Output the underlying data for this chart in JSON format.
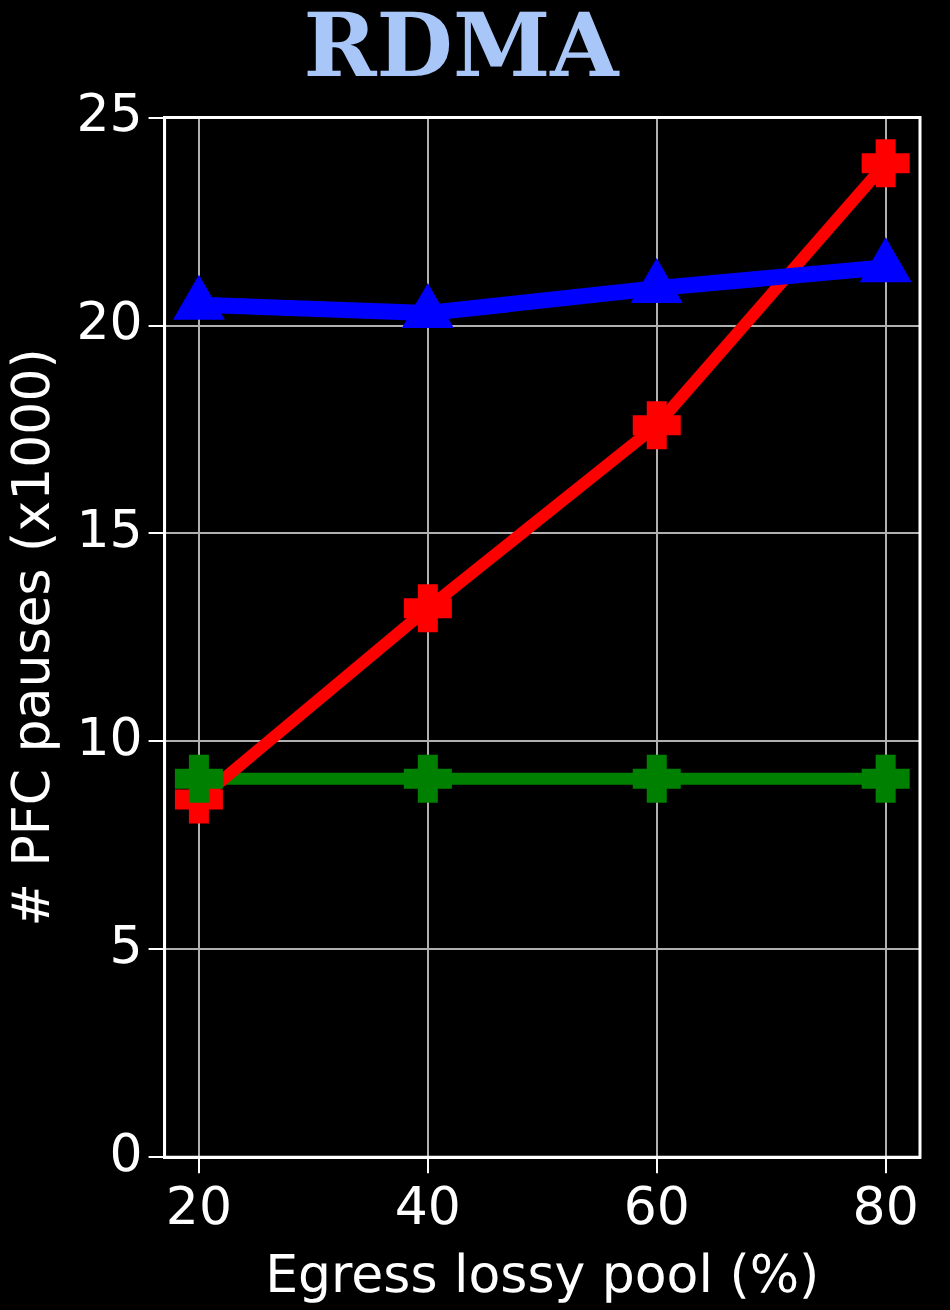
{
  "chart_data": {
    "type": "line",
    "title": "RDMA",
    "xlabel": "Egress lossy pool (%)",
    "ylabel": "# PFC pauses (x1000)",
    "x": [
      20,
      40,
      60,
      80
    ],
    "series": [
      {
        "color": "#0000ff",
        "values": [
          20.5,
          20.3,
          20.9,
          21.4
        ],
        "marker": "triangle"
      },
      {
        "color": "#ff0000",
        "values": [
          8.6,
          13.2,
          17.6,
          23.9
        ],
        "marker": "cross"
      },
      {
        "color": "#008000",
        "values": [
          9.1,
          9.1,
          9.1,
          9.1
        ],
        "marker": "cross"
      }
    ],
    "xlim": [
      17,
      83
    ],
    "xticks": [
      20,
      40,
      60,
      80
    ],
    "ylim": [
      0,
      25
    ],
    "yticks": [
      0,
      5,
      10,
      15,
      20,
      25
    ],
    "grid": true,
    "legend": false
  }
}
